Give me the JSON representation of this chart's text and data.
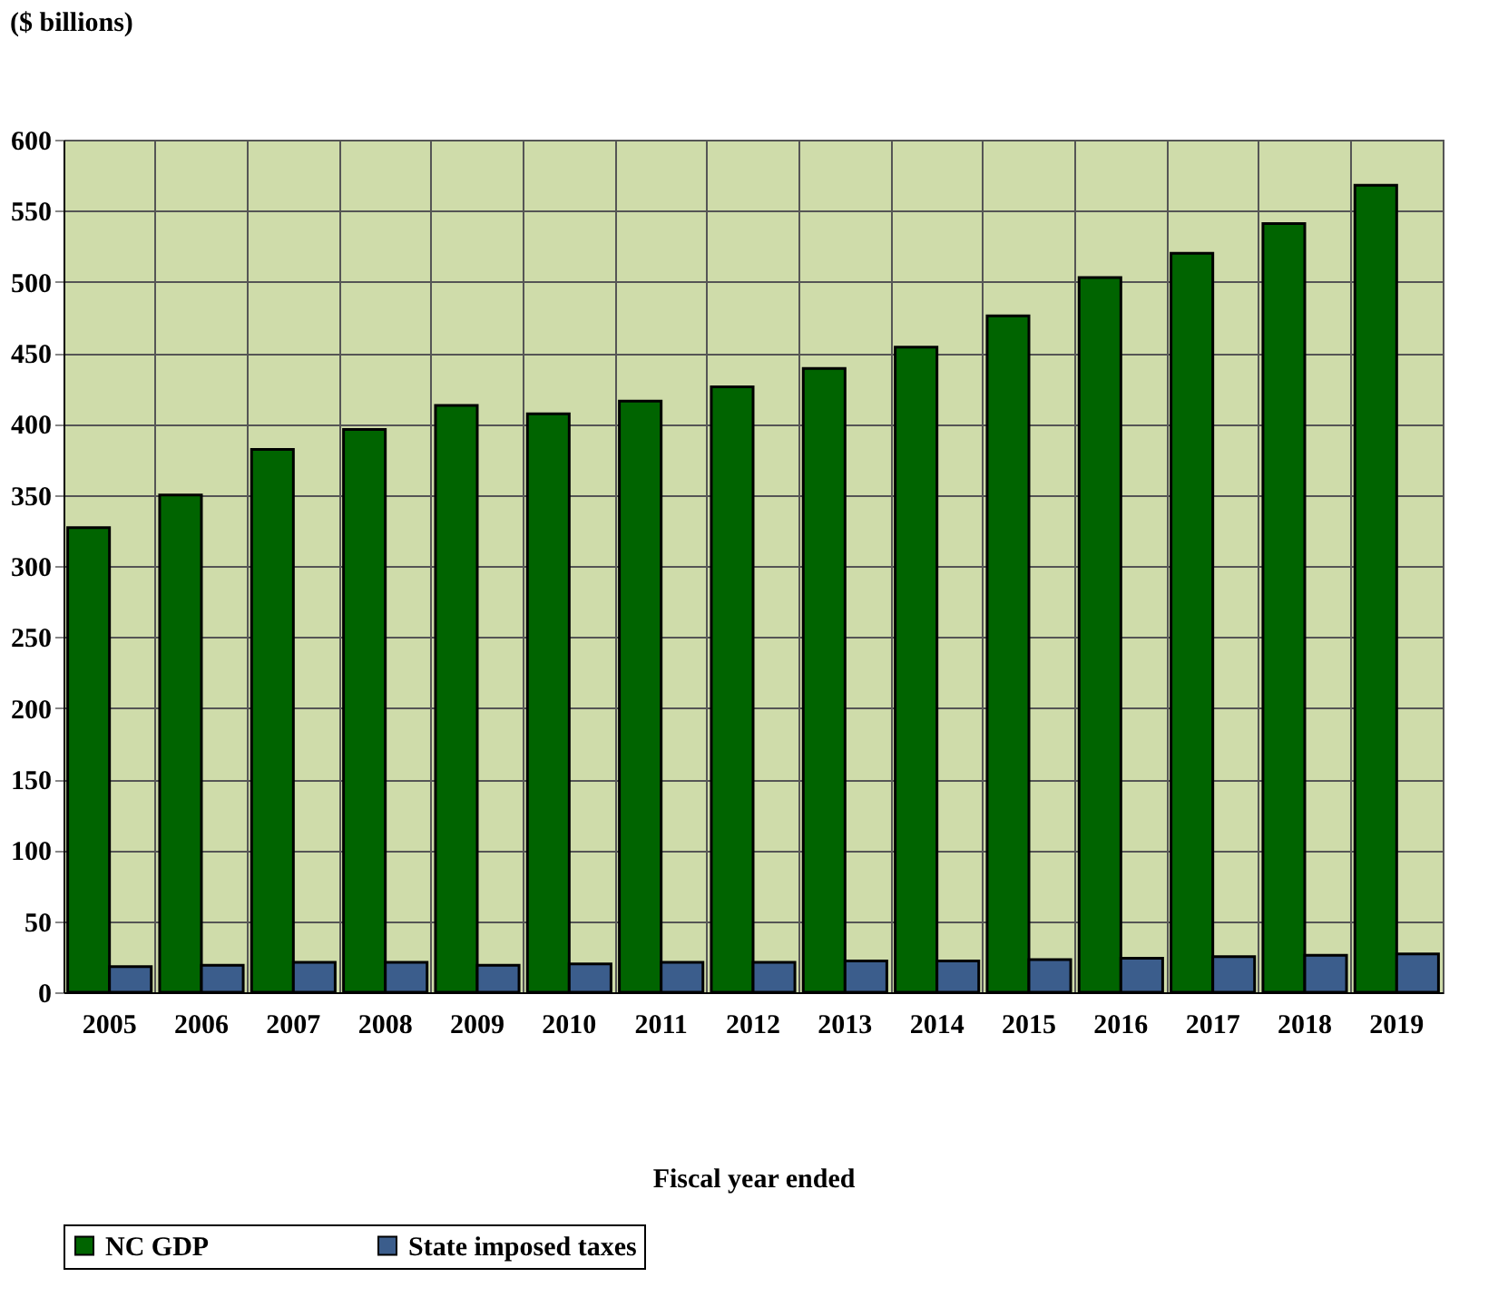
{
  "chart_data": {
    "type": "bar",
    "title": "($ billions)",
    "xlabel": "Fiscal year ended",
    "categories": [
      "2005",
      "2006",
      "2007",
      "2008",
      "2009",
      "2010",
      "2011",
      "2012",
      "2013",
      "2014",
      "2015",
      "2016",
      "2017",
      "2018",
      "2019"
    ],
    "series": [
      {
        "name": "NC GDP",
        "color": "#006400",
        "values": [
          327,
          350,
          382,
          396,
          413,
          407,
          416,
          426,
          439,
          454,
          476,
          503,
          520,
          541,
          568
        ]
      },
      {
        "name": "State imposed taxes",
        "color": "#3b5d8c",
        "values": [
          18,
          19,
          21,
          21,
          19,
          20,
          21,
          21,
          22,
          22,
          23,
          24,
          25,
          26,
          27
        ]
      }
    ],
    "ylim": [
      0,
      600
    ],
    "yticks": [
      0,
      50,
      100,
      150,
      200,
      250,
      300,
      350,
      400,
      450,
      500,
      550,
      600
    ],
    "grid": true,
    "legend": "bottom"
  }
}
